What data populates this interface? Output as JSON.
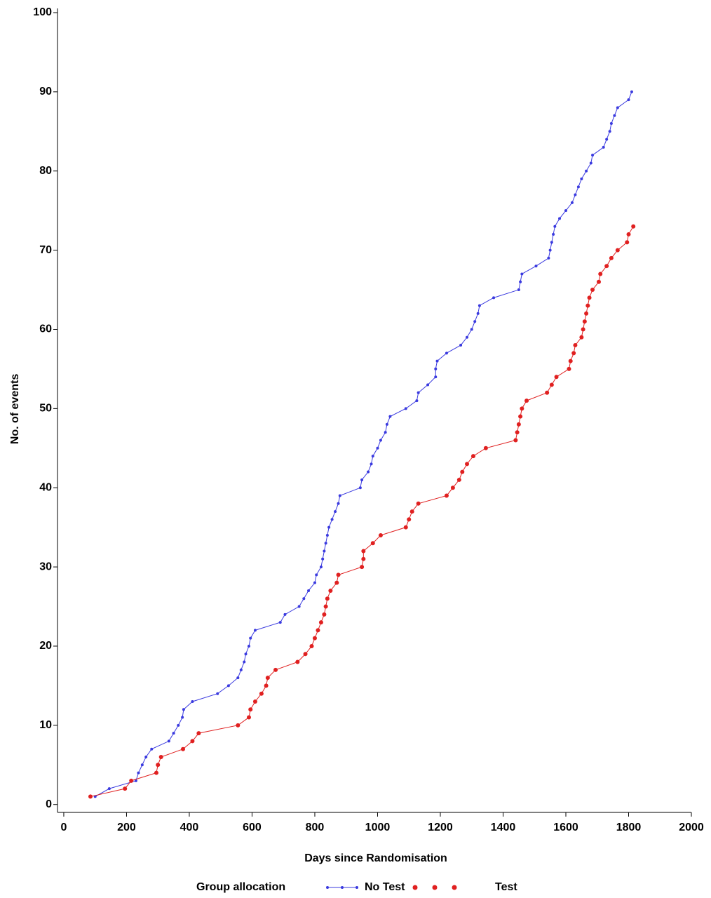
{
  "chart_data": {
    "type": "line",
    "x_label": "Days since Randomisation",
    "y_label": "No. of events",
    "legend_title": "Group allocation",
    "xlim": [
      -20,
      2000
    ],
    "ylim": [
      -1,
      100
    ],
    "xticks": [
      0,
      200,
      400,
      600,
      800,
      1000,
      1200,
      1400,
      1600,
      1800,
      2000
    ],
    "yticks": [
      0,
      10,
      20,
      30,
      40,
      50,
      60,
      70,
      80,
      90,
      100
    ],
    "series": [
      {
        "name": "No Test",
        "color": "#3a3adf",
        "x": [
          100,
          145,
          230,
          238,
          250,
          262,
          280,
          335,
          350,
          365,
          378,
          382,
          410,
          490,
          525,
          555,
          565,
          575,
          580,
          590,
          595,
          610,
          690,
          705,
          750,
          765,
          780,
          800,
          805,
          820,
          825,
          830,
          835,
          840,
          845,
          855,
          865,
          875,
          880,
          945,
          950,
          970,
          980,
          985,
          1000,
          1010,
          1025,
          1030,
          1040,
          1090,
          1125,
          1130,
          1160,
          1185,
          1185,
          1190,
          1220,
          1265,
          1285,
          1300,
          1310,
          1320,
          1325,
          1370,
          1450,
          1455,
          1460,
          1505,
          1545,
          1550,
          1555,
          1560,
          1565,
          1580,
          1600,
          1620,
          1630,
          1640,
          1650,
          1665,
          1680,
          1685,
          1720,
          1730,
          1740,
          1745,
          1755,
          1765,
          1800,
          1810
        ],
        "values": [
          1,
          2,
          3,
          4,
          5,
          6,
          7,
          8,
          9,
          10,
          11,
          12,
          13,
          14,
          15,
          16,
          17,
          18,
          19,
          20,
          21,
          22,
          23,
          24,
          25,
          26,
          27,
          28,
          29,
          30,
          31,
          32,
          33,
          34,
          35,
          36,
          37,
          38,
          39,
          40,
          41,
          42,
          43,
          44,
          45,
          46,
          47,
          48,
          49,
          50,
          51,
          52,
          53,
          54,
          55,
          56,
          57,
          58,
          59,
          60,
          61,
          62,
          63,
          64,
          65,
          66,
          67,
          68,
          69,
          70,
          71,
          72,
          73,
          74,
          75,
          76,
          77,
          78,
          79,
          80,
          81,
          82,
          83,
          84,
          85,
          86,
          87,
          88,
          89,
          90
        ]
      },
      {
        "name": "Test",
        "color": "#e02020",
        "x": [
          85,
          195,
          215,
          295,
          300,
          310,
          380,
          410,
          430,
          555,
          590,
          595,
          610,
          630,
          645,
          650,
          675,
          745,
          770,
          790,
          800,
          810,
          820,
          830,
          835,
          840,
          850,
          870,
          875,
          950,
          955,
          955,
          985,
          1010,
          1090,
          1100,
          1110,
          1130,
          1220,
          1240,
          1260,
          1270,
          1285,
          1305,
          1345,
          1440,
          1445,
          1450,
          1455,
          1460,
          1475,
          1540,
          1555,
          1570,
          1610,
          1615,
          1625,
          1630,
          1650,
          1655,
          1660,
          1665,
          1670,
          1675,
          1685,
          1705,
          1710,
          1730,
          1745,
          1765,
          1795,
          1800,
          1815
        ],
        "values": [
          1,
          2,
          3,
          4,
          5,
          6,
          7,
          8,
          9,
          10,
          11,
          12,
          13,
          14,
          15,
          16,
          17,
          18,
          19,
          20,
          21,
          22,
          23,
          24,
          25,
          26,
          27,
          28,
          29,
          30,
          31,
          32,
          33,
          34,
          35,
          36,
          37,
          38,
          39,
          40,
          41,
          42,
          43,
          44,
          45,
          46,
          47,
          48,
          49,
          50,
          51,
          52,
          53,
          54,
          55,
          56,
          57,
          58,
          59,
          60,
          61,
          62,
          63,
          64,
          65,
          66,
          67,
          68,
          69,
          70,
          71,
          72,
          73
        ]
      }
    ]
  }
}
